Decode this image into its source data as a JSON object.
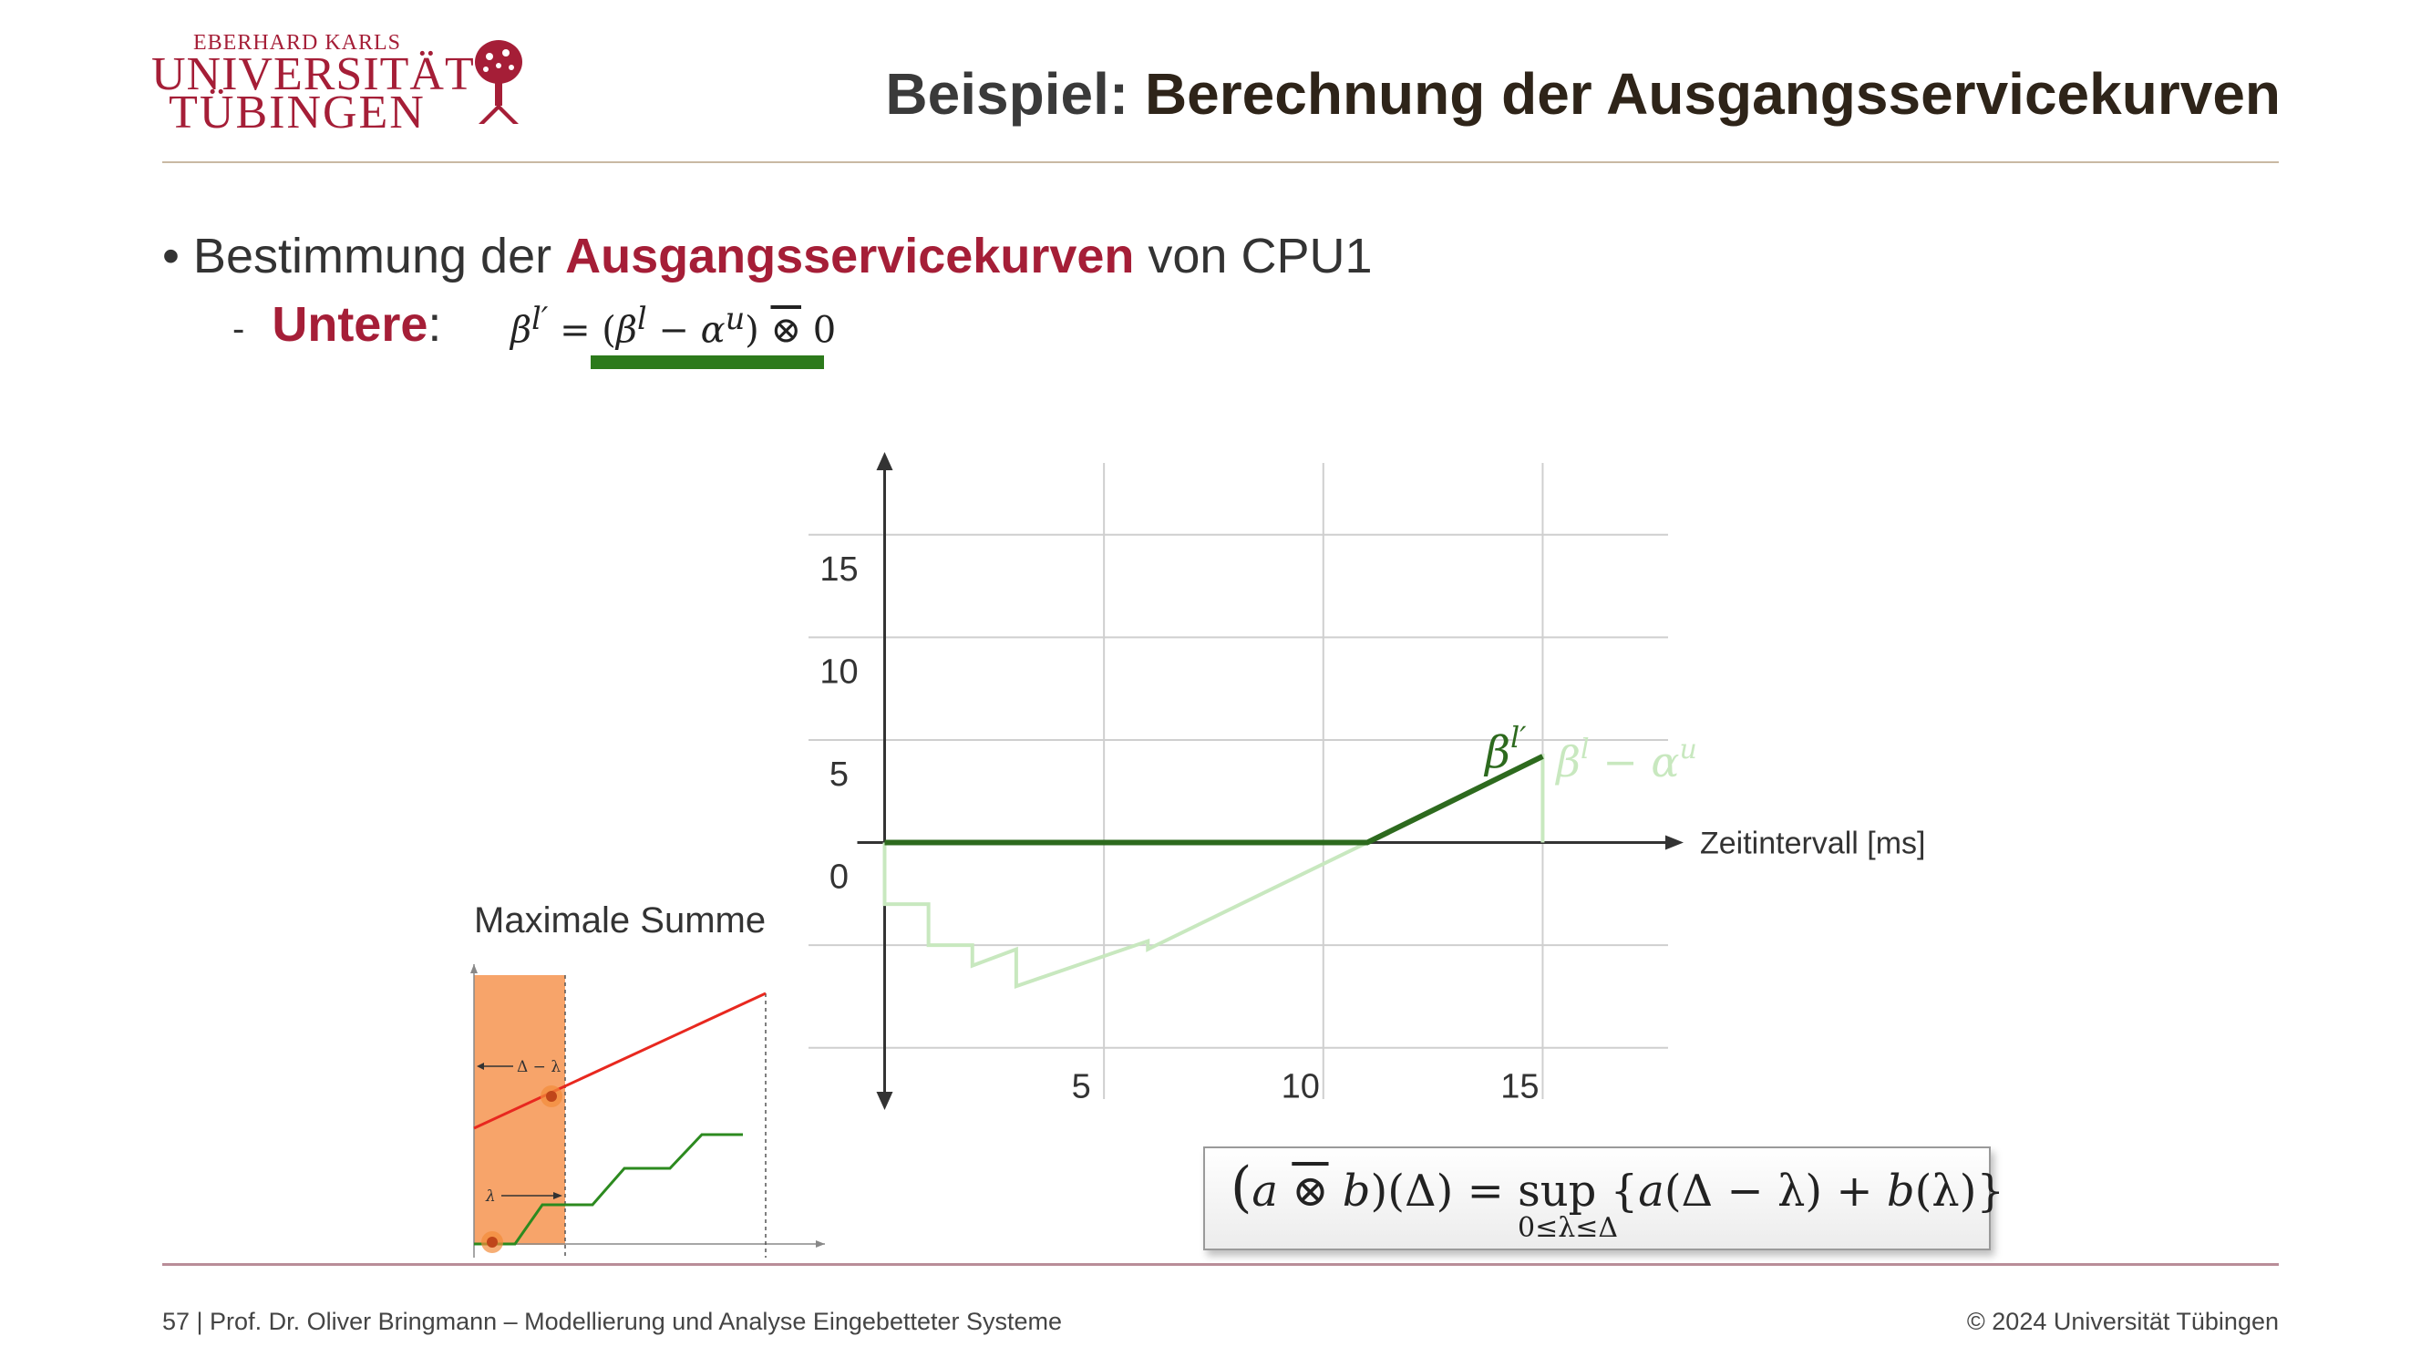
{
  "logo": {
    "line1": "EBERHARD KARLS",
    "line2": "UNIVERSITÄT",
    "line3": "TÜBINGEN",
    "icon": "tree-seal-icon",
    "color": "#a51e37"
  },
  "title": {
    "prefix": "Beispiel: ",
    "main": "Berechnung der Ausgangsservicekurven"
  },
  "bullet": {
    "text_before": "Bestimmung der ",
    "highlight": "Ausgangsservicekurven",
    "text_after": " von CPU1"
  },
  "sub_bullet": {
    "dash": "-",
    "label": "Untere",
    "colon": ":"
  },
  "formula_top": {
    "lhs": "β",
    "lhs_sup": "l′",
    "eq": " = (",
    "b": "β",
    "b_sup": "l",
    "minus": " − ",
    "a": "α",
    "a_sup": "u",
    "close": ")",
    "op": "⊗",
    "rhs": " 0"
  },
  "chart_data": {
    "type": "line",
    "xlabel": "Zeitintervall [ms]",
    "ylabel": "",
    "x_ticks": [
      5,
      10,
      15
    ],
    "y_ticks": [
      0,
      5,
      10,
      15
    ],
    "xlim": [
      -0.8,
      16.3
    ],
    "ylim": [
      -12.5,
      18.5
    ],
    "grid": true,
    "series": [
      {
        "name": "βl′",
        "name_base": "β",
        "name_sup": "l′",
        "color": "#2d6a1e",
        "points": [
          [
            0,
            0
          ],
          [
            11,
            0
          ],
          [
            15,
            4.2
          ]
        ]
      },
      {
        "name": "βl − αu",
        "name_base": "β",
        "name_sup_1": "l",
        "name_mid": " − α",
        "name_sup_2": "u",
        "color": "#c8e8bf",
        "points": [
          [
            0,
            0
          ],
          [
            0,
            -3
          ],
          [
            1,
            -3
          ],
          [
            1,
            -5
          ],
          [
            2,
            -5
          ],
          [
            2,
            -6
          ],
          [
            3,
            -5.2
          ],
          [
            3,
            -7
          ],
          [
            6,
            -4.8
          ],
          [
            6,
            -5.2
          ],
          [
            11,
            0
          ],
          [
            15,
            4.2
          ],
          [
            15,
            0
          ]
        ]
      }
    ]
  },
  "inset": {
    "title": "Maximale Summe",
    "label_top": "Δ − λ",
    "label_bottom": "λ"
  },
  "formula_box": {
    "open": "(",
    "a": "a",
    "op": "⊗",
    "b": "b",
    "close": ")(Δ) =  sup {",
    "rhs_a": "a",
    "rhs_mid": "(Δ − λ) + ",
    "rhs_b": "b",
    "rhs_end": "(λ)}",
    "subscript": "0≤λ≤Δ"
  },
  "footer": {
    "left": "57 | Prof. Dr. Oliver Bringmann – Modellierung und Analyse Eingebetteter Systeme",
    "right": "© 2024 Universität Tübingen"
  }
}
